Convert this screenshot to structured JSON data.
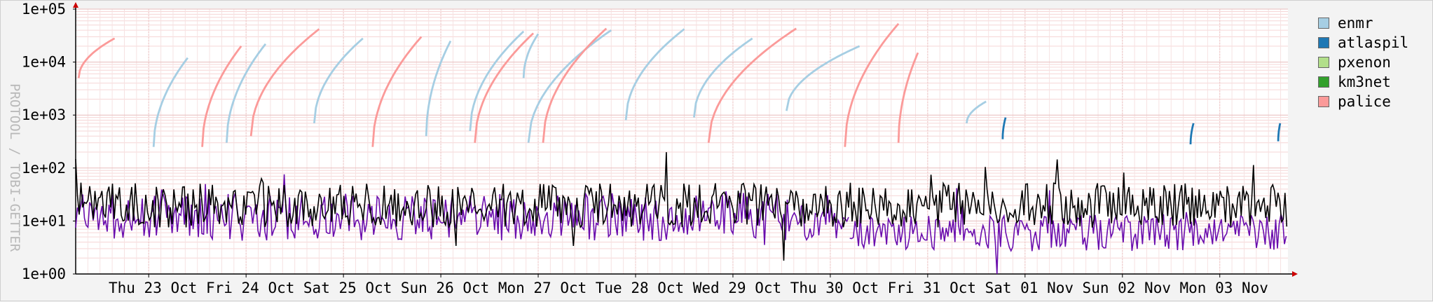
{
  "chart_data": {
    "type": "line",
    "ylabel": "PROTOOL / TOBI-GETTER",
    "yscale": "log",
    "ylim": [
      1,
      100000
    ],
    "y_ticks": [
      "1e+00",
      "1e+01",
      "1e+02",
      "1e+03",
      "1e+04",
      "1e+05"
    ],
    "x_ticks": [
      "Thu 23 Oct",
      "Fri 24 Oct",
      "Sat 25 Oct",
      "Sun 26 Oct",
      "Mon 27 Oct",
      "Tue 28 Oct",
      "Wed 29 Oct",
      "Thu 30 Oct",
      "Fri 31 Oct",
      "Sat 01 Nov",
      "Sun 02 Nov",
      "Mon 03 Nov"
    ],
    "xlim_days": [
      -0.75,
      11.7
    ],
    "grid": true,
    "legend_position": "top-right",
    "colors": {
      "enmr": "#a6cee3",
      "atlaspil": "#1f78b4",
      "pxenon": "#b2df8a",
      "km3net": "#33a02c",
      "palice": "#fb9a99",
      "purple_line": "#6a0dad",
      "black_line": "#000000"
    },
    "legend": [
      {
        "name": "enmr",
        "color": "#a6cee3"
      },
      {
        "name": "atlaspil",
        "color": "#1f78b4"
      },
      {
        "name": "pxenon",
        "color": "#b2df8a"
      },
      {
        "name": "km3net",
        "color": "#33a02c"
      },
      {
        "name": "palice",
        "color": "#fb9a99"
      }
    ],
    "series": [
      {
        "name": "enmr",
        "color": "#a6cee3",
        "segments": [
          [
            [
              0.05,
              250
            ],
            [
              0.4,
              12000
            ]
          ],
          [
            [
              0.8,
              300
            ],
            [
              1.2,
              22000
            ]
          ],
          [
            [
              1.7,
              700
            ],
            [
              2.2,
              28000
            ]
          ],
          [
            [
              2.85,
              400
            ],
            [
              3.1,
              25000
            ]
          ],
          [
            [
              3.3,
              500
            ],
            [
              3.85,
              38000
            ]
          ],
          [
            [
              3.85,
              5000
            ],
            [
              4.0,
              34000
            ]
          ],
          [
            [
              3.9,
              300
            ],
            [
              4.75,
              40000
            ]
          ],
          [
            [
              4.9,
              800
            ],
            [
              5.5,
              42000
            ]
          ],
          [
            [
              5.6,
              900
            ],
            [
              6.2,
              28000
            ]
          ],
          [
            [
              6.55,
              1200
            ],
            [
              7.3,
              20000
            ]
          ],
          [
            [
              8.4,
              700
            ],
            [
              8.6,
              1800
            ]
          ]
        ]
      },
      {
        "name": "atlaspil",
        "color": "#1f78b4",
        "segments": [
          [
            [
              8.77,
              350
            ],
            [
              8.8,
              900
            ]
          ],
          [
            [
              10.7,
              280
            ],
            [
              10.73,
              700
            ]
          ],
          [
            [
              11.6,
              320
            ],
            [
              11.62,
              700
            ]
          ]
        ]
      },
      {
        "name": "palice",
        "color": "#fb9a99",
        "segments": [
          [
            [
              -0.72,
              5000
            ],
            [
              -0.35,
              28000
            ]
          ],
          [
            [
              0.55,
              250
            ],
            [
              0.95,
              20000
            ]
          ],
          [
            [
              1.05,
              400
            ],
            [
              1.75,
              42000
            ]
          ],
          [
            [
              2.3,
              250
            ],
            [
              2.8,
              30000
            ]
          ],
          [
            [
              3.35,
              300
            ],
            [
              3.95,
              35000
            ]
          ],
          [
            [
              4.05,
              300
            ],
            [
              4.7,
              43000
            ]
          ],
          [
            [
              5.75,
              300
            ],
            [
              6.65,
              43000
            ]
          ],
          [
            [
              7.15,
              250
            ],
            [
              7.7,
              53000
            ]
          ],
          [
            [
              7.7,
              300
            ],
            [
              7.9,
              15000
            ]
          ]
        ]
      },
      {
        "name": "black line",
        "color": "#000000",
        "base": 20,
        "segments": []
      },
      {
        "name": "purple line",
        "color": "#6a0dad",
        "base": 12,
        "segments": []
      }
    ]
  }
}
